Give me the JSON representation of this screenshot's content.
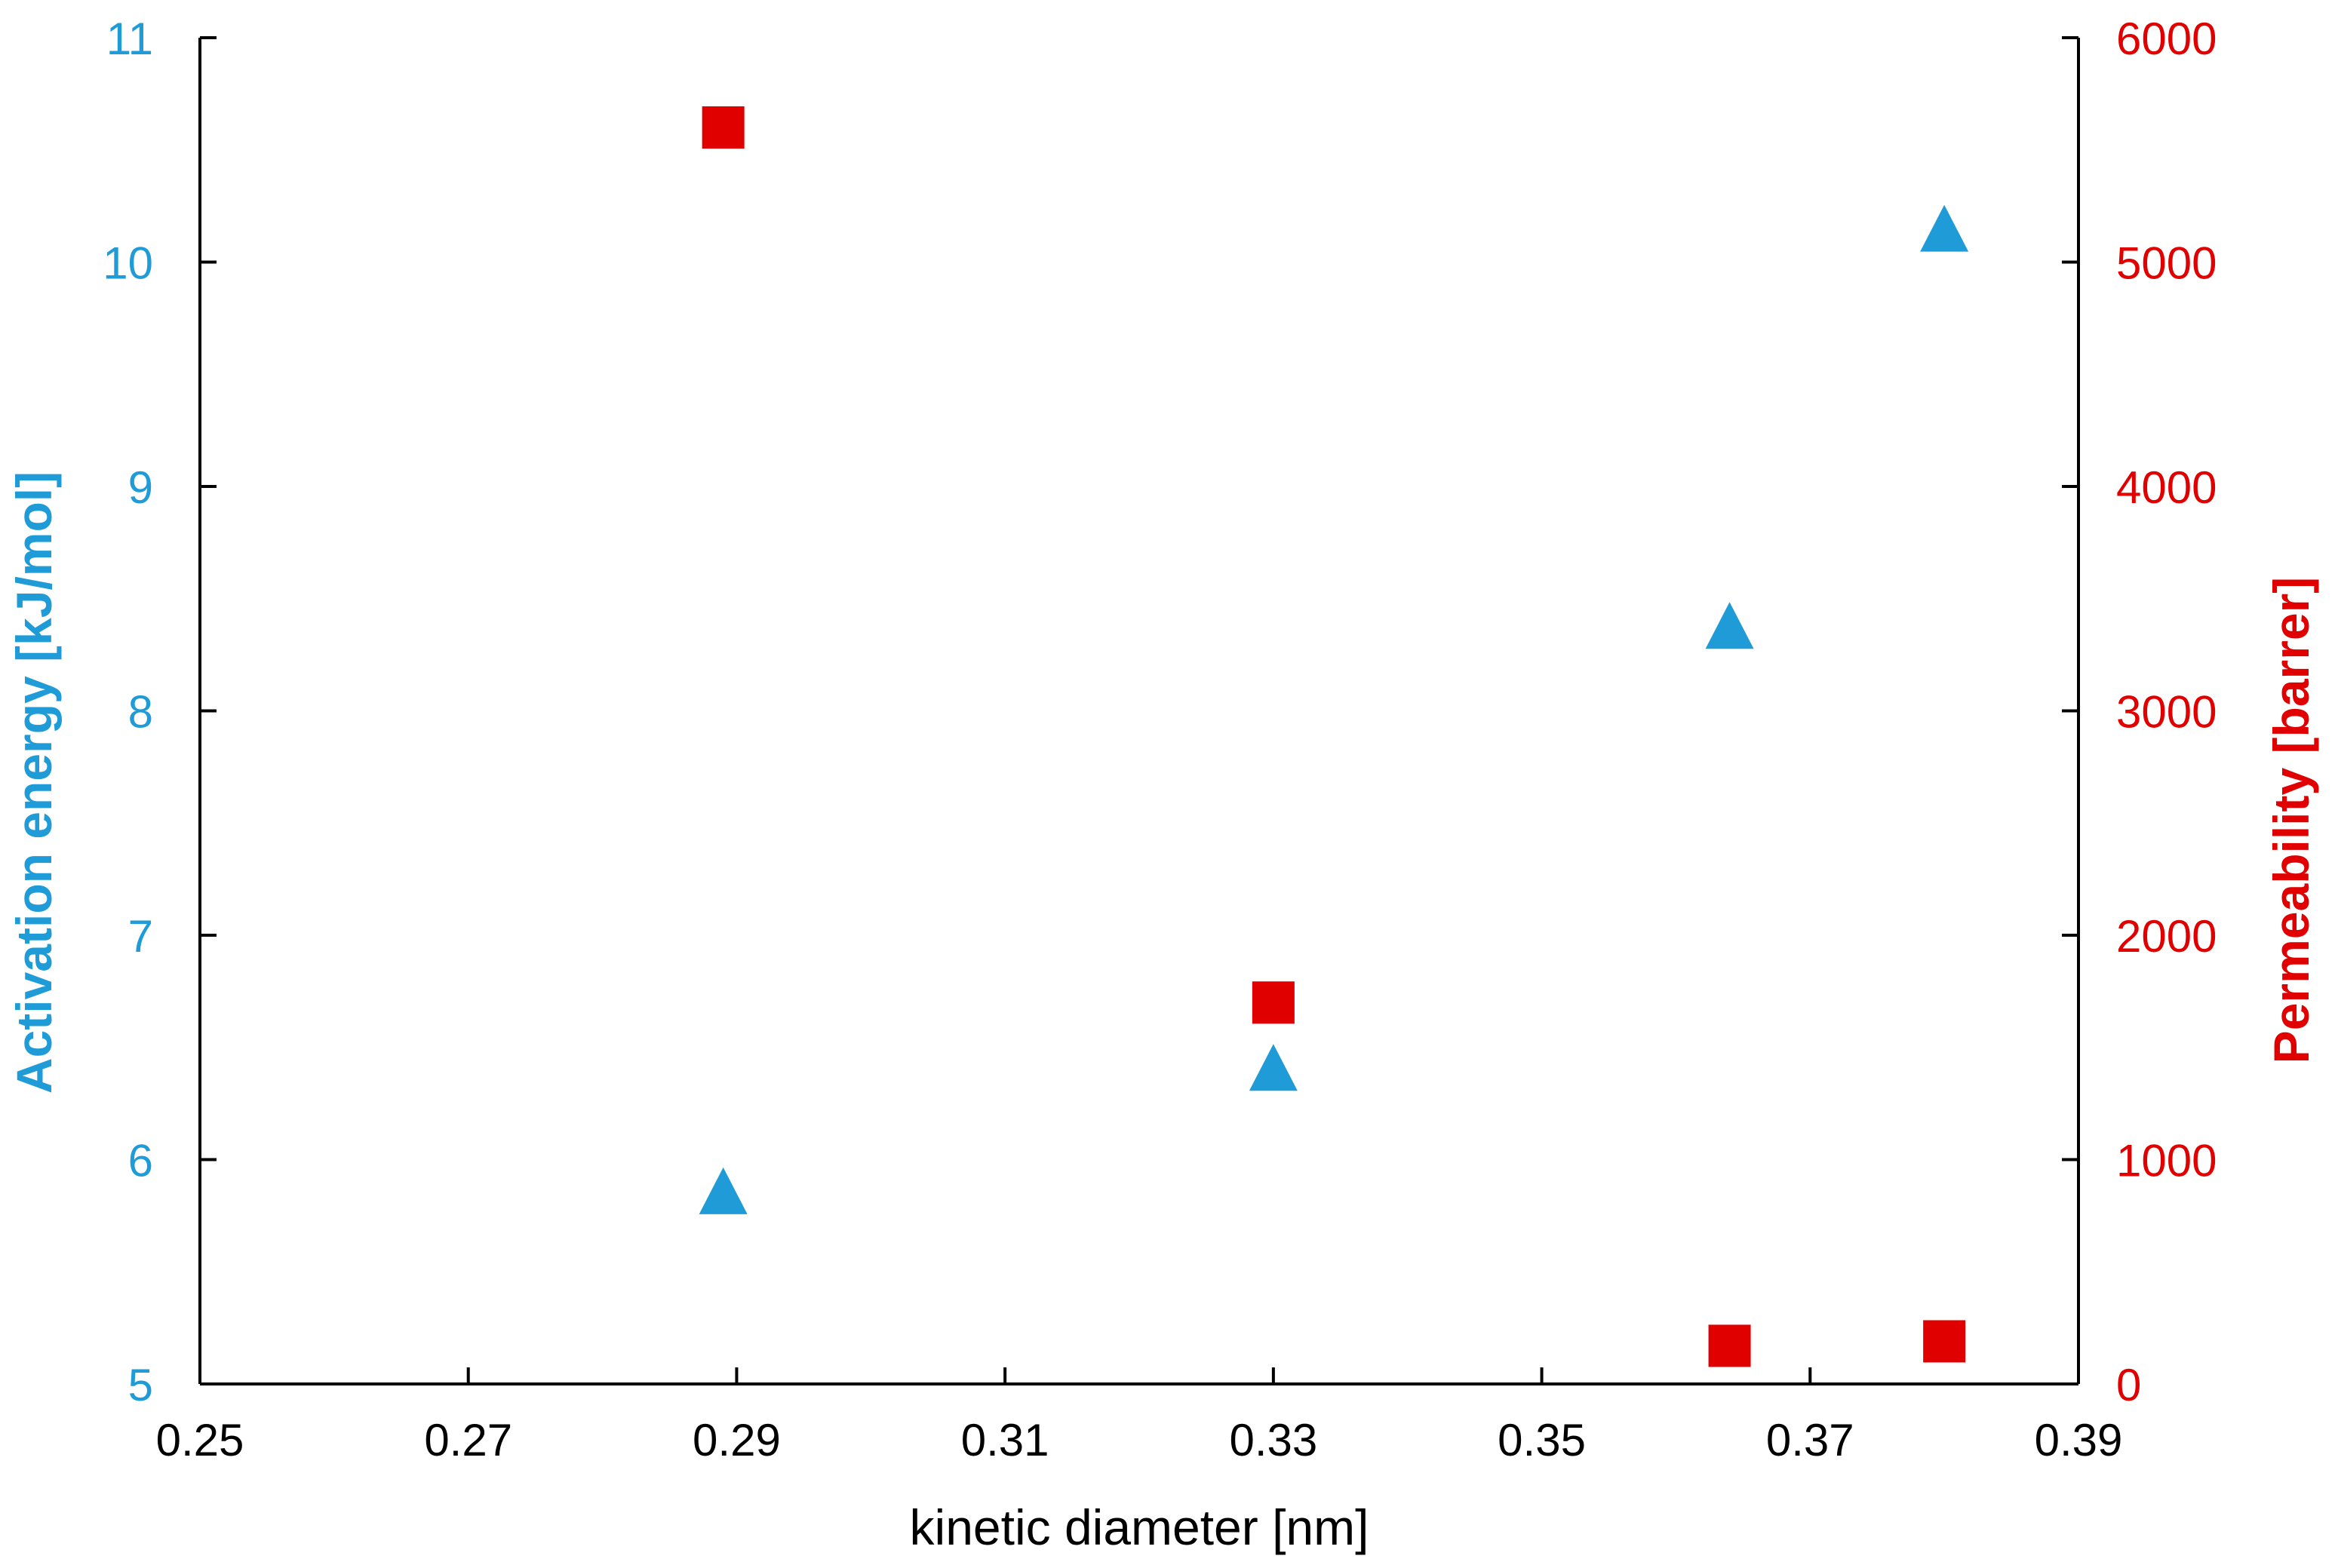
{
  "chart_data": {
    "type": "scatter",
    "xlabel": "kinetic diameter [nm]",
    "ylabel_left": "Activation energy [kJ/mol]",
    "ylabel_right": "Permeability [barrer]",
    "xlim": [
      0.25,
      0.39
    ],
    "ylim_left": [
      5,
      11
    ],
    "ylim_right": [
      0,
      6000
    ],
    "x_ticks": [
      "0.25",
      "0.27",
      "0.29",
      "0.31",
      "0.33",
      "0.35",
      "0.37",
      "0.39"
    ],
    "y_left_ticks": [
      "5",
      "6",
      "7",
      "8",
      "9",
      "10",
      "11"
    ],
    "y_right_ticks": [
      "0",
      "1000",
      "2000",
      "3000",
      "4000",
      "5000",
      "6000"
    ],
    "grid": false,
    "series": [
      {
        "axis": "left",
        "marker": "triangle",
        "color": "#1f9bd7",
        "points": [
          {
            "x": 0.289,
            "y": 5.84
          },
          {
            "x": 0.33,
            "y": 6.39
          },
          {
            "x": 0.364,
            "y": 8.36
          },
          {
            "x": 0.38,
            "y": 10.13
          }
        ]
      },
      {
        "axis": "right",
        "marker": "square",
        "color": "#e00000",
        "points": [
          {
            "x": 0.289,
            "y": 5600
          },
          {
            "x": 0.33,
            "y": 1700
          },
          {
            "x": 0.364,
            "y": 170
          },
          {
            "x": 0.38,
            "y": 190
          }
        ]
      }
    ],
    "colors": {
      "left_axis": "#1f9bd7",
      "right_axis": "#e00000",
      "axis_line": "#000000"
    }
  }
}
